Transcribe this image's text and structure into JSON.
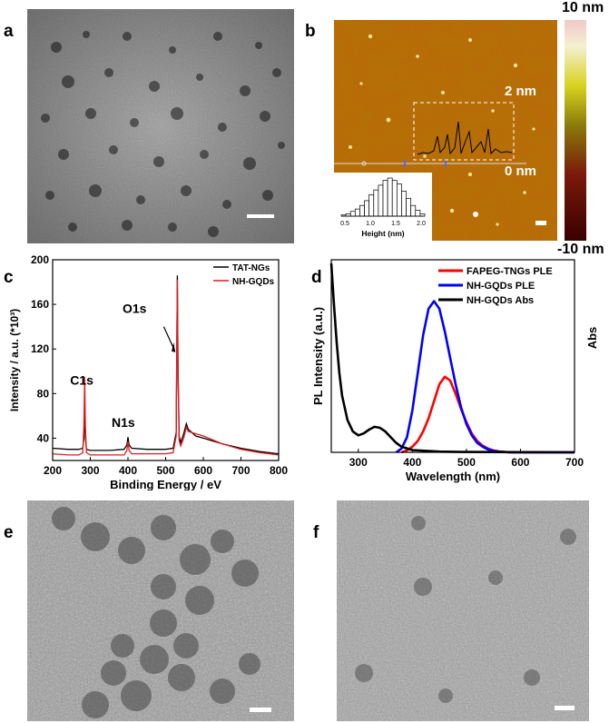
{
  "panels": {
    "a": {
      "label": "a"
    },
    "b": {
      "label": "b",
      "colorbar_max": "10 nm",
      "colorbar_min": "-10 nm",
      "profile_max": "2 nm",
      "profile_zero": "0 nm",
      "histogram": {
        "xlabel": "Height (nm)",
        "ticks": [
          "0.5",
          "1.0",
          "1.5",
          "2.0"
        ],
        "values": [
          1,
          2,
          4,
          6,
          9,
          13,
          18,
          22,
          26,
          30,
          32,
          30,
          27,
          21,
          15,
          9,
          5,
          2
        ]
      }
    },
    "c": {
      "label": "c"
    },
    "d": {
      "label": "d"
    },
    "e": {
      "label": "e"
    },
    "f": {
      "label": "f"
    }
  },
  "chart_data": [
    {
      "type": "line",
      "panel": "c",
      "xlabel": "Binding Energy / eV",
      "ylabel": "Intensity / a.u. (*10³)",
      "xlim": [
        200,
        800
      ],
      "ylim": [
        20,
        200
      ],
      "xticks": [
        "200",
        "300",
        "400",
        "500",
        "600",
        "700",
        "800"
      ],
      "yticks": [
        "40",
        "80",
        "120",
        "160",
        "200"
      ],
      "legend": "top-right",
      "annotations": [
        "O1s",
        "C1s",
        "N1s"
      ],
      "series": [
        {
          "name": "TAT-NGs",
          "color": "#000000",
          "x": [
            200,
            240,
            270,
            280,
            283,
            285,
            287,
            290,
            300,
            350,
            390,
            397,
            400,
            403,
            410,
            450,
            500,
            520,
            528,
            531,
            533,
            536,
            540,
            548,
            555,
            560,
            580,
            600,
            650,
            700,
            750,
            800
          ],
          "y": [
            31,
            30,
            30,
            31,
            40,
            70,
            40,
            30,
            29,
            29,
            30,
            34,
            41,
            34,
            31,
            30,
            30,
            31,
            45,
            186,
            100,
            42,
            36,
            44,
            53,
            48,
            42,
            40,
            35,
            31,
            28,
            26
          ]
        },
        {
          "name": "NH-GQDs",
          "color": "#e41a1c",
          "x": [
            200,
            240,
            270,
            280,
            283,
            285,
            287,
            290,
            300,
            350,
            390,
            397,
            400,
            403,
            410,
            450,
            500,
            520,
            528,
            531,
            533,
            536,
            540,
            548,
            555,
            560,
            580,
            600,
            650,
            700,
            750,
            800
          ],
          "y": [
            26,
            25,
            25,
            27,
            50,
            95,
            50,
            27,
            25,
            25,
            25,
            29,
            37,
            29,
            26,
            26,
            26,
            27,
            42,
            182,
            95,
            38,
            33,
            40,
            50,
            46,
            44,
            42,
            35,
            30,
            27,
            25
          ]
        }
      ]
    },
    {
      "type": "line",
      "panel": "d",
      "xlabel": "Wavelength (nm)",
      "ylabel": "PL Intensity (a.u.)",
      "ylabel_right": "Abs",
      "xlim": [
        250,
        700
      ],
      "xticks": [
        "300",
        "400",
        "500",
        "600",
        "700"
      ],
      "legend": "top-right",
      "series": [
        {
          "name": "FAPEG-TNGs PLE",
          "color": "#ff0000",
          "x": [
            380,
            390,
            400,
            410,
            420,
            430,
            440,
            450,
            460,
            470,
            480,
            490,
            500,
            510,
            520,
            530,
            540,
            550,
            560,
            580,
            600,
            650,
            700
          ],
          "y": [
            0,
            0.01,
            0.03,
            0.06,
            0.11,
            0.18,
            0.27,
            0.36,
            0.4,
            0.38,
            0.31,
            0.23,
            0.16,
            0.1,
            0.06,
            0.035,
            0.02,
            0.01,
            0.005,
            0,
            0,
            0,
            0
          ]
        },
        {
          "name": "NH-GQDs PLE",
          "color": "#0000ff",
          "x": [
            370,
            380,
            390,
            400,
            410,
            420,
            430,
            440,
            450,
            460,
            470,
            480,
            490,
            500,
            510,
            520,
            530,
            540,
            550,
            560,
            580,
            600,
            650,
            700
          ],
          "y": [
            0,
            0.02,
            0.08,
            0.22,
            0.42,
            0.62,
            0.76,
            0.8,
            0.76,
            0.64,
            0.5,
            0.36,
            0.24,
            0.15,
            0.09,
            0.05,
            0.03,
            0.015,
            0.008,
            0.004,
            0,
            0,
            0,
            0
          ]
        },
        {
          "name": "NH-GQDs Abs",
          "color": "#000000",
          "x": [
            250,
            255,
            260,
            265,
            270,
            280,
            290,
            300,
            310,
            320,
            330,
            340,
            350,
            360,
            370,
            380,
            400,
            450,
            500,
            600,
            700
          ],
          "y": [
            1.0,
            0.78,
            0.58,
            0.42,
            0.3,
            0.17,
            0.11,
            0.09,
            0.1,
            0.12,
            0.135,
            0.13,
            0.11,
            0.08,
            0.05,
            0.03,
            0.012,
            0.004,
            0.002,
            0.001,
            0
          ]
        }
      ]
    }
  ]
}
